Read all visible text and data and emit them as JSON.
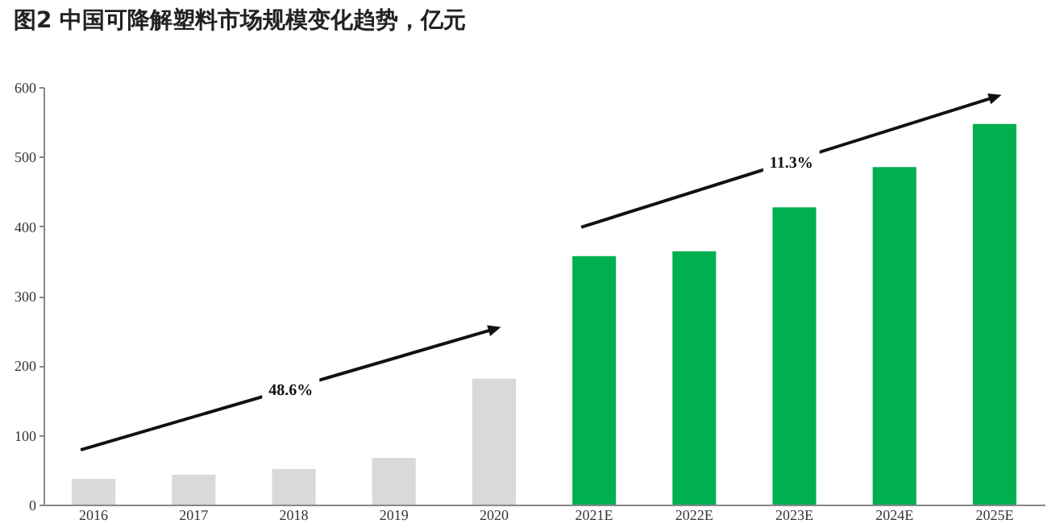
{
  "chart_data": {
    "type": "bar",
    "title": "图2 中国可降解塑料市场规模变化趋势，亿元",
    "categories": [
      "2016",
      "2017",
      "2018",
      "2019",
      "2020",
      "2021E",
      "2022E",
      "2023E",
      "2024E",
      "2025E"
    ],
    "values": [
      37,
      43,
      51,
      67,
      181,
      357,
      364,
      427,
      485,
      547
    ],
    "colors": [
      "#d9d9d9",
      "#d9d9d9",
      "#d9d9d9",
      "#d9d9d9",
      "#d9d9d9",
      "#00b050",
      "#00b050",
      "#00b050",
      "#00b050",
      "#00b050"
    ],
    "ylim": [
      0,
      600
    ],
    "yticks": [
      0,
      100,
      200,
      300,
      400,
      500,
      600
    ],
    "annotations": [
      "48.6%",
      "11.3%"
    ]
  }
}
